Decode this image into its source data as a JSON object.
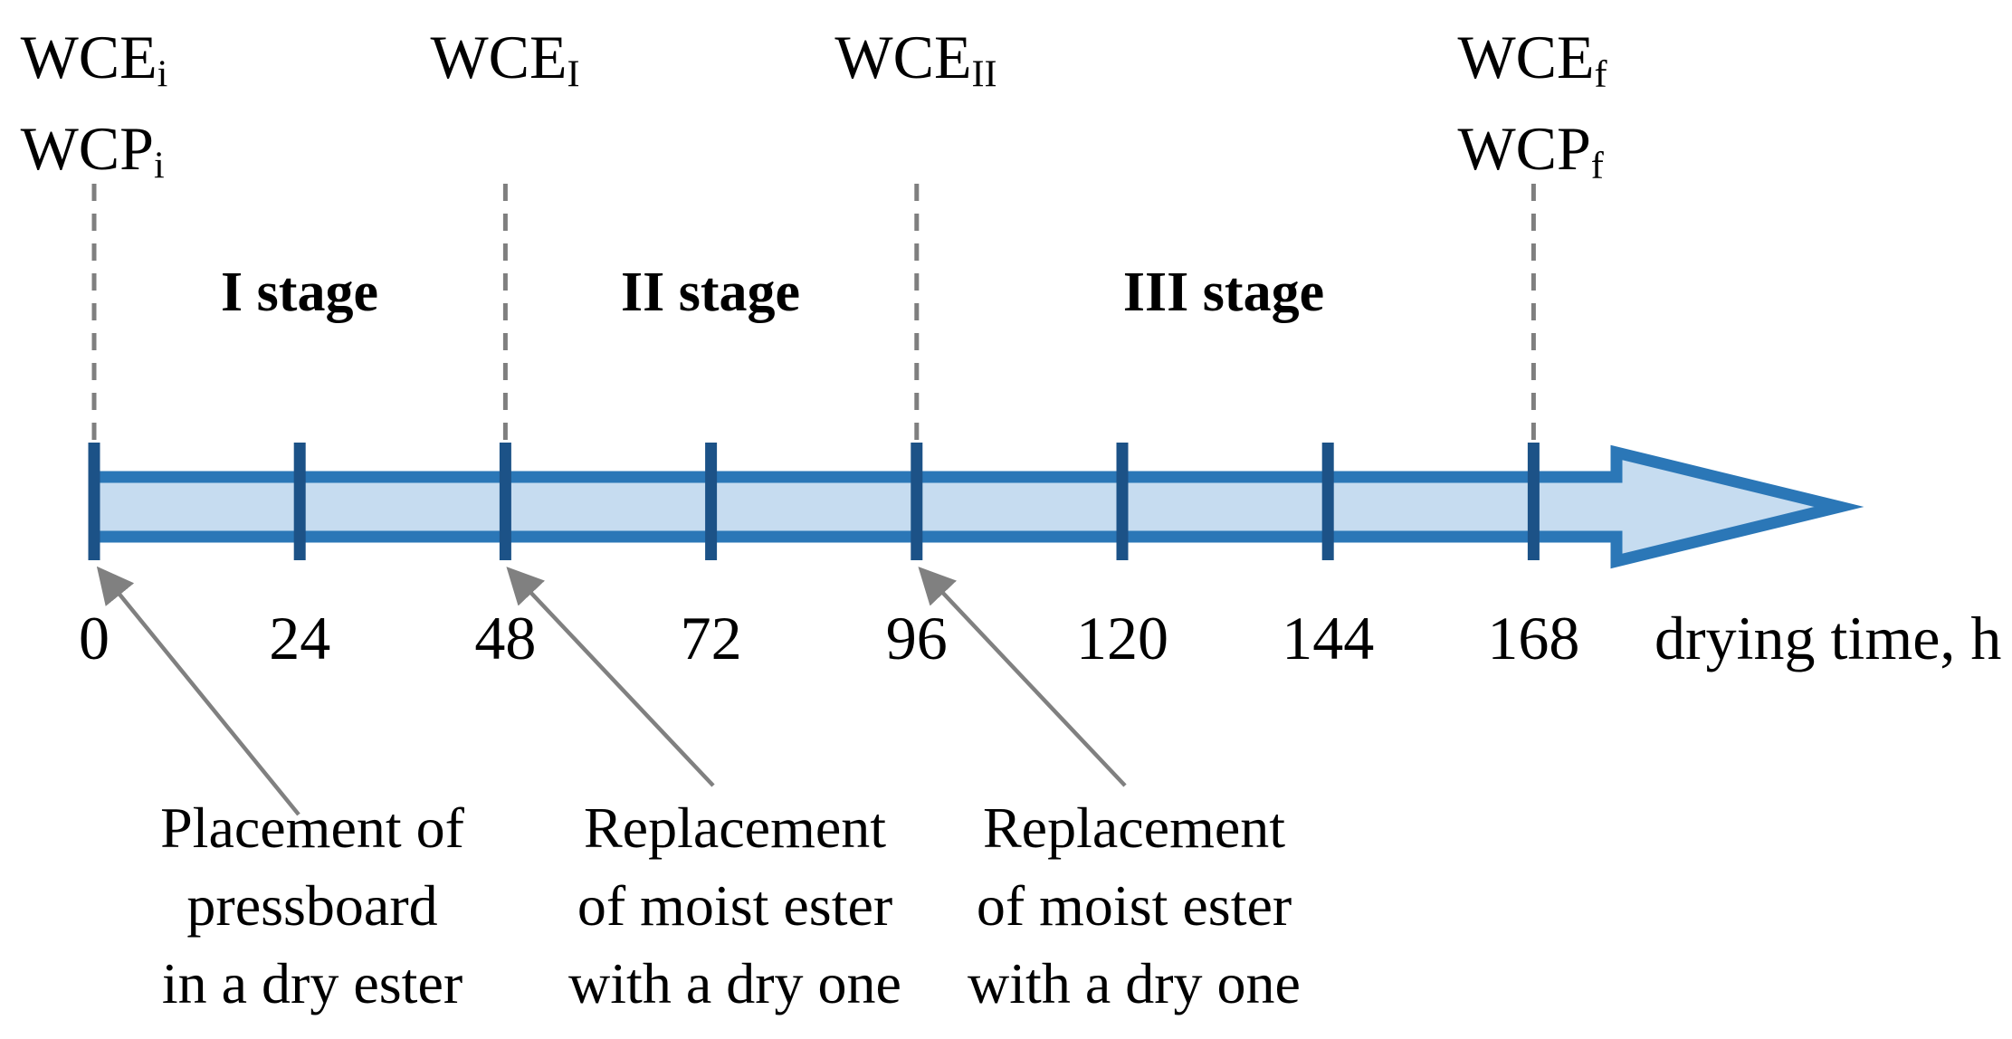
{
  "figure": {
    "type": "process-timeline",
    "description": "Drying process timeline with three stages"
  },
  "colors": {
    "band_fill": "#C6DCF0",
    "band_stroke": "#2B77B7",
    "tick": "#1C5287",
    "dash_gray": "#7F7F7F",
    "arrow_gray": "#808080",
    "text": "#000000"
  },
  "top_labels": [
    {
      "lines": [
        {
          "base": "WCE",
          "sub": "i"
        },
        {
          "base": "WCP",
          "sub": "i"
        }
      ]
    },
    {
      "lines": [
        {
          "base": "WCE",
          "sub": "I"
        }
      ]
    },
    {
      "lines": [
        {
          "base": "WCE",
          "sub": "II"
        }
      ]
    },
    {
      "lines": [
        {
          "base": "WCE",
          "sub": "f"
        },
        {
          "base": "WCP",
          "sub": "f"
        }
      ]
    }
  ],
  "stages": [
    {
      "label": "I stage"
    },
    {
      "label": "II stage"
    },
    {
      "label": "III stage"
    }
  ],
  "timeline": {
    "ticks": [
      "0",
      "24",
      "48",
      "72",
      "96",
      "120",
      "144",
      "168"
    ],
    "dashed_tick_indices": [
      0,
      2,
      4,
      7
    ],
    "axis_label": "drying time, h"
  },
  "annotations": [
    {
      "lines": [
        "Placement of",
        "pressboard",
        "in a dry ester"
      ]
    },
    {
      "lines": [
        "Replacement",
        "of moist ester",
        "with a dry one"
      ]
    },
    {
      "lines": [
        "Replacement",
        "of moist ester",
        "with a dry one"
      ]
    }
  ]
}
